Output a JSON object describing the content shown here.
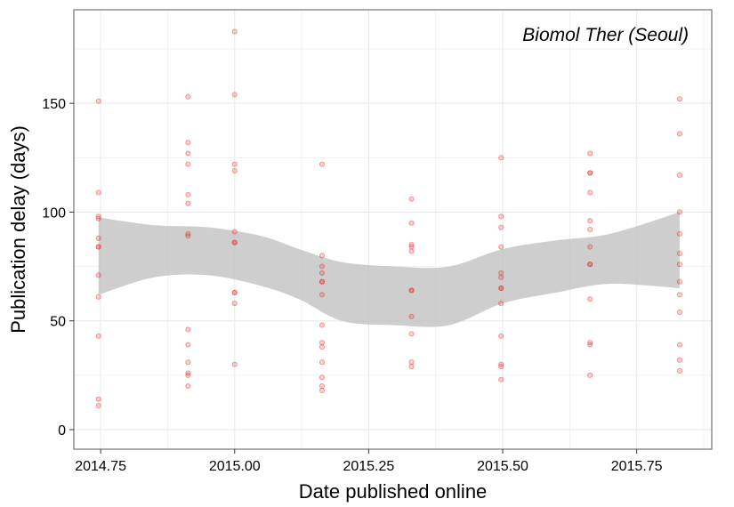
{
  "chart_data": {
    "type": "scatter",
    "title": "",
    "annotation": "Biomol Ther (Seoul)",
    "xlabel": "Date published online",
    "ylabel": "Publication delay (days)",
    "xlim": [
      2014.7,
      2015.89
    ],
    "ylim": [
      -9,
      193
    ],
    "x_ticks": [
      2014.75,
      2015.0,
      2015.25,
      2015.5,
      2015.75
    ],
    "x_tick_labels": [
      "2014.75",
      "2015.00",
      "2015.25",
      "2015.50",
      "2015.75"
    ],
    "y_ticks": [
      0,
      50,
      100,
      150
    ],
    "y_tick_labels": [
      "0",
      "50",
      "100",
      "150"
    ],
    "grid": true,
    "legend": "none",
    "colors": {
      "points": "#e8251f",
      "band": "#bdbdbd",
      "grid": "#ebebeb",
      "border": "#7f7f7f"
    },
    "points": [
      {
        "x": 2014.746,
        "y": 151
      },
      {
        "x": 2014.746,
        "y": 109
      },
      {
        "x": 2014.746,
        "y": 98
      },
      {
        "x": 2014.746,
        "y": 97
      },
      {
        "x": 2014.746,
        "y": 88
      },
      {
        "x": 2014.746,
        "y": 84
      },
      {
        "x": 2014.746,
        "y": 84
      },
      {
        "x": 2014.746,
        "y": 71
      },
      {
        "x": 2014.746,
        "y": 61
      },
      {
        "x": 2014.746,
        "y": 43
      },
      {
        "x": 2014.746,
        "y": 14
      },
      {
        "x": 2014.746,
        "y": 11
      },
      {
        "x": 2014.913,
        "y": 153
      },
      {
        "x": 2014.913,
        "y": 132
      },
      {
        "x": 2014.913,
        "y": 127
      },
      {
        "x": 2014.913,
        "y": 122
      },
      {
        "x": 2014.913,
        "y": 108
      },
      {
        "x": 2014.913,
        "y": 104
      },
      {
        "x": 2014.913,
        "y": 90
      },
      {
        "x": 2014.913,
        "y": 89
      },
      {
        "x": 2014.913,
        "y": 46
      },
      {
        "x": 2014.913,
        "y": 39
      },
      {
        "x": 2014.913,
        "y": 31
      },
      {
        "x": 2014.913,
        "y": 26
      },
      {
        "x": 2014.913,
        "y": 25
      },
      {
        "x": 2014.913,
        "y": 20
      },
      {
        "x": 2015.0,
        "y": 183
      },
      {
        "x": 2015.0,
        "y": 154
      },
      {
        "x": 2015.0,
        "y": 122
      },
      {
        "x": 2015.0,
        "y": 119
      },
      {
        "x": 2015.0,
        "y": 91
      },
      {
        "x": 2015.0,
        "y": 86
      },
      {
        "x": 2015.0,
        "y": 86
      },
      {
        "x": 2015.0,
        "y": 63
      },
      {
        "x": 2015.0,
        "y": 63
      },
      {
        "x": 2015.0,
        "y": 58
      },
      {
        "x": 2015.0,
        "y": 30
      },
      {
        "x": 2015.163,
        "y": 122
      },
      {
        "x": 2015.163,
        "y": 80
      },
      {
        "x": 2015.163,
        "y": 75
      },
      {
        "x": 2015.163,
        "y": 72
      },
      {
        "x": 2015.163,
        "y": 68
      },
      {
        "x": 2015.163,
        "y": 68
      },
      {
        "x": 2015.163,
        "y": 62
      },
      {
        "x": 2015.163,
        "y": 48
      },
      {
        "x": 2015.163,
        "y": 40
      },
      {
        "x": 2015.163,
        "y": 38
      },
      {
        "x": 2015.163,
        "y": 31
      },
      {
        "x": 2015.163,
        "y": 24
      },
      {
        "x": 2015.163,
        "y": 20
      },
      {
        "x": 2015.163,
        "y": 18
      },
      {
        "x": 2015.33,
        "y": 106
      },
      {
        "x": 2015.33,
        "y": 95
      },
      {
        "x": 2015.33,
        "y": 85
      },
      {
        "x": 2015.33,
        "y": 84
      },
      {
        "x": 2015.33,
        "y": 82
      },
      {
        "x": 2015.33,
        "y": 64
      },
      {
        "x": 2015.33,
        "y": 64
      },
      {
        "x": 2015.33,
        "y": 52
      },
      {
        "x": 2015.33,
        "y": 44
      },
      {
        "x": 2015.33,
        "y": 31
      },
      {
        "x": 2015.33,
        "y": 29
      },
      {
        "x": 2015.497,
        "y": 125
      },
      {
        "x": 2015.497,
        "y": 98
      },
      {
        "x": 2015.497,
        "y": 93
      },
      {
        "x": 2015.497,
        "y": 84
      },
      {
        "x": 2015.497,
        "y": 72
      },
      {
        "x": 2015.497,
        "y": 70
      },
      {
        "x": 2015.497,
        "y": 65
      },
      {
        "x": 2015.497,
        "y": 65
      },
      {
        "x": 2015.497,
        "y": 58
      },
      {
        "x": 2015.497,
        "y": 43
      },
      {
        "x": 2015.497,
        "y": 30
      },
      {
        "x": 2015.497,
        "y": 29
      },
      {
        "x": 2015.497,
        "y": 23
      },
      {
        "x": 2015.663,
        "y": 127
      },
      {
        "x": 2015.663,
        "y": 118
      },
      {
        "x": 2015.663,
        "y": 118
      },
      {
        "x": 2015.663,
        "y": 109
      },
      {
        "x": 2015.663,
        "y": 96
      },
      {
        "x": 2015.663,
        "y": 92
      },
      {
        "x": 2015.663,
        "y": 84
      },
      {
        "x": 2015.663,
        "y": 76
      },
      {
        "x": 2015.663,
        "y": 76
      },
      {
        "x": 2015.663,
        "y": 60
      },
      {
        "x": 2015.663,
        "y": 40
      },
      {
        "x": 2015.663,
        "y": 39
      },
      {
        "x": 2015.663,
        "y": 25
      },
      {
        "x": 2015.83,
        "y": 152
      },
      {
        "x": 2015.83,
        "y": 136
      },
      {
        "x": 2015.83,
        "y": 117
      },
      {
        "x": 2015.83,
        "y": 100
      },
      {
        "x": 2015.83,
        "y": 90
      },
      {
        "x": 2015.83,
        "y": 81
      },
      {
        "x": 2015.83,
        "y": 76
      },
      {
        "x": 2015.83,
        "y": 68
      },
      {
        "x": 2015.83,
        "y": 62
      },
      {
        "x": 2015.83,
        "y": 54
      },
      {
        "x": 2015.83,
        "y": 39
      },
      {
        "x": 2015.83,
        "y": 32
      },
      {
        "x": 2015.83,
        "y": 27
      }
    ],
    "band": {
      "x": [
        2014.746,
        2014.85,
        2014.95,
        2015.05,
        2015.12,
        2015.2,
        2015.3,
        2015.4,
        2015.5,
        2015.6,
        2015.7,
        2015.83
      ],
      "upper": [
        97.5,
        94,
        93,
        89,
        83,
        77,
        75,
        75,
        83,
        87,
        90,
        100
      ],
      "lower": [
        62,
        70,
        71,
        66,
        60,
        50,
        48,
        48,
        58,
        63,
        67,
        65
      ]
    }
  }
}
